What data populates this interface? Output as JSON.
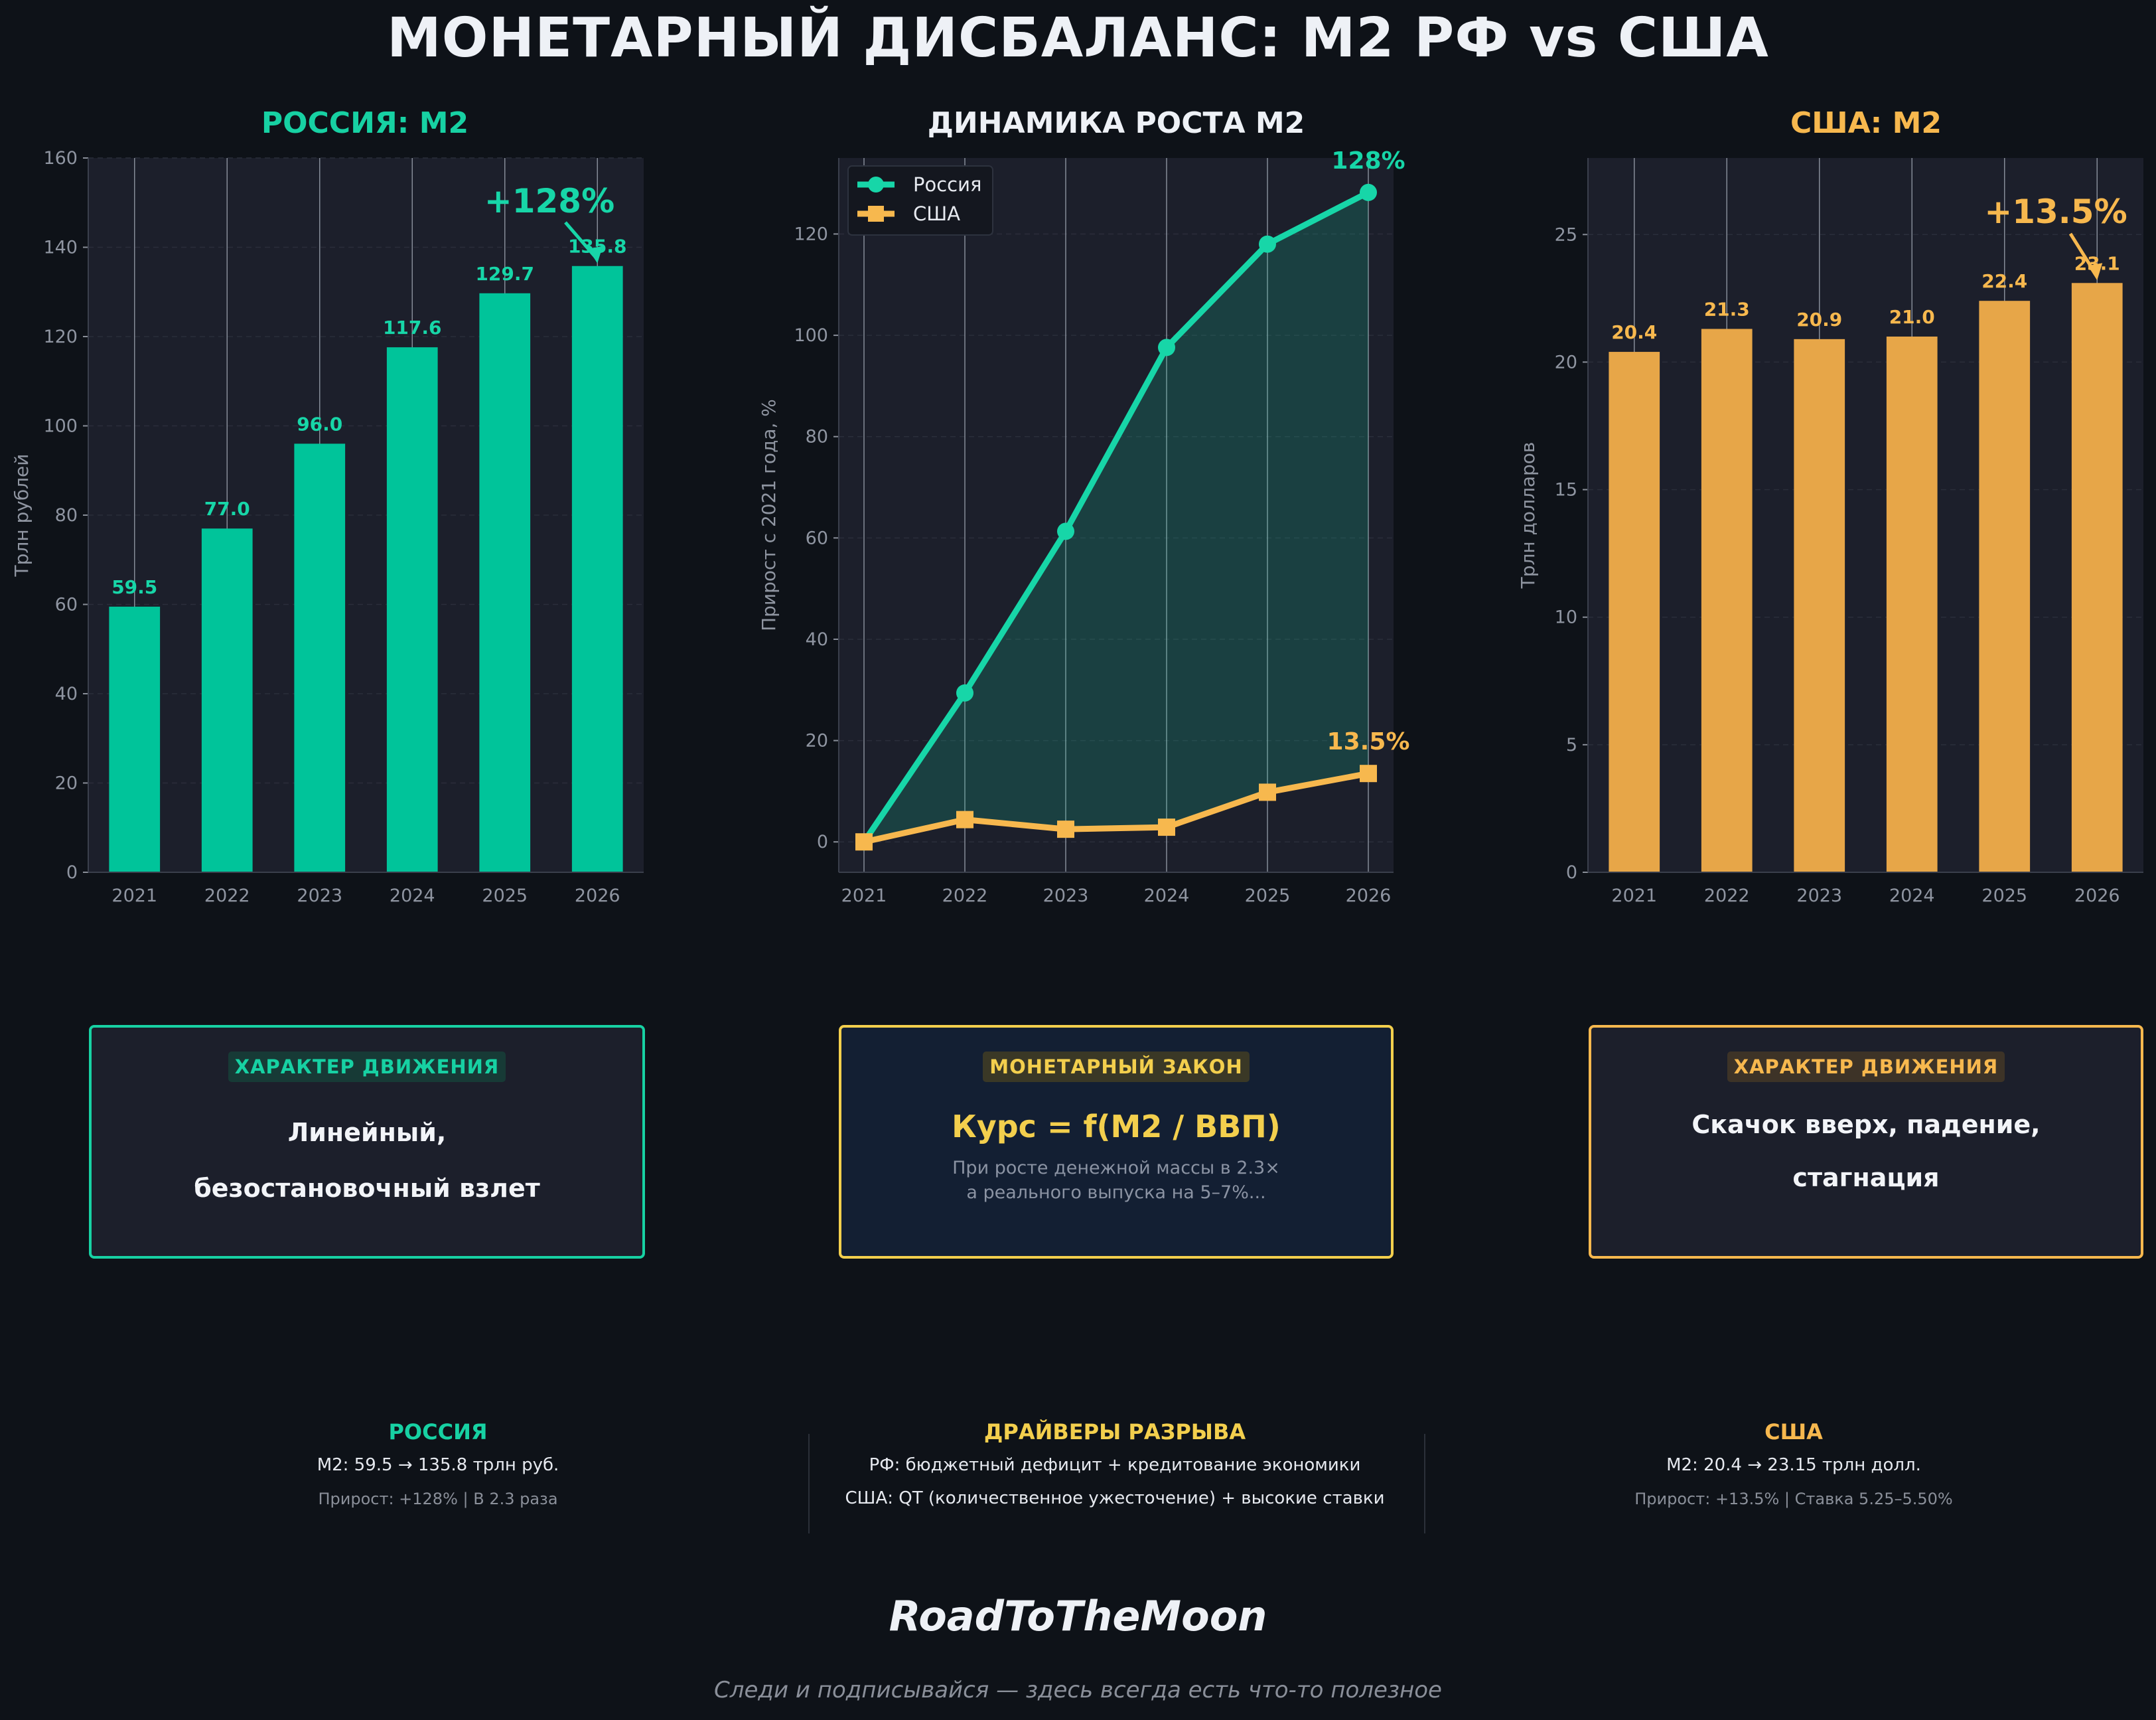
{
  "page": {
    "title": "МОНЕТАРНЫЙ ДИСБАЛАНС: М2 РФ vs США",
    "brand": "RoadToTheMoon",
    "tagline": "Следи и подписывайся — здесь всегда есть что-то полезное"
  },
  "colors": {
    "background": "#0e1218",
    "plot_bg": "#1c1f2b",
    "russia": "#00c49a",
    "russia_line": "#17d6a8",
    "usa": "#e7a648",
    "usa_line": "#f7b84e",
    "law": "#f3cf4d"
  },
  "chart_data": [
    {
      "type": "bar",
      "title": "РОССИЯ: М2",
      "ylabel": "Трлн рублей",
      "xlabel": "",
      "categories": [
        "2021",
        "2022",
        "2023",
        "2024",
        "2025",
        "2026"
      ],
      "values": [
        59.5,
        77.0,
        96.0,
        117.6,
        129.7,
        135.8
      ],
      "value_labels": [
        "59.5",
        "77.0",
        "96.0",
        "117.6",
        "129.7",
        "135.8"
      ],
      "ylim": [
        0,
        160
      ],
      "yticks": [
        "0",
        "20",
        "40",
        "60",
        "80",
        "100",
        "120",
        "140",
        "160"
      ],
      "annotation": "+128%",
      "grid": true
    },
    {
      "type": "line",
      "title": "ДИНАМИКА РОСТА М2",
      "ylabel": "Прирост с 2021 года, %",
      "xlabel": "",
      "x": [
        "2021",
        "2022",
        "2023",
        "2024",
        "2025",
        "2026"
      ],
      "series": [
        {
          "name": "Россия",
          "values": [
            0,
            29.4,
            61.3,
            97.6,
            118.0,
            128.2
          ],
          "end_label": "128%"
        },
        {
          "name": "США",
          "values": [
            0,
            4.4,
            2.5,
            2.9,
            9.8,
            13.5
          ],
          "end_label": "13.5%"
        }
      ],
      "ylim": [
        -6,
        135
      ],
      "yticks": [
        "0",
        "20",
        "40",
        "60",
        "80",
        "100",
        "120"
      ],
      "legend": "top-left",
      "grid": true
    },
    {
      "type": "bar",
      "title": "США: М2",
      "ylabel": "Трлн долларов",
      "xlabel": "",
      "categories": [
        "2021",
        "2022",
        "2023",
        "2024",
        "2025",
        "2026"
      ],
      "values": [
        20.4,
        21.3,
        20.9,
        21.0,
        22.4,
        23.1
      ],
      "value_labels": [
        "20.4",
        "21.3",
        "20.9",
        "21.0",
        "22.4",
        "23.1"
      ],
      "ylim": [
        0,
        28
      ],
      "yticks": [
        "0",
        "5",
        "10",
        "15",
        "20",
        "25"
      ],
      "annotation": "+13.5%",
      "grid": true
    }
  ],
  "boxes": {
    "russia": {
      "badge": "ХАРАКТЕР ДВИЖЕНИЯ",
      "line1": "Линейный,",
      "line2": "безостановочный взлет"
    },
    "law": {
      "badge": "МОНЕТАРНЫЙ ЗАКОН",
      "formula": "Курс = f(M2 / ВВП)",
      "line1": "При росте денежной массы в 2.3×",
      "line2": "а реального выпуска на 5–7%..."
    },
    "usa": {
      "badge": "ХАРАКТЕР ДВИЖЕНИЯ",
      "line1": "Скачок вверх, падение,",
      "line2": "стагнация"
    }
  },
  "footer": {
    "russia": {
      "title": "РОССИЯ",
      "line1": "М2: 59.5 → 135.8 трлн руб.",
      "line2": "Прирост: +128% | В 2.3 раза"
    },
    "drivers": {
      "title": "ДРАЙВЕРЫ РАЗРЫВА",
      "line1": "РФ: бюджетный дефицит + кредитование экономики",
      "line2": "США: QT (количественное ужесточение) + высокие ставки"
    },
    "usa": {
      "title": "США",
      "line1": "М2: 20.4 → 23.15 трлн долл.",
      "line2": "Прирост: +13.5% | Ставка 5.25–5.50%"
    }
  }
}
